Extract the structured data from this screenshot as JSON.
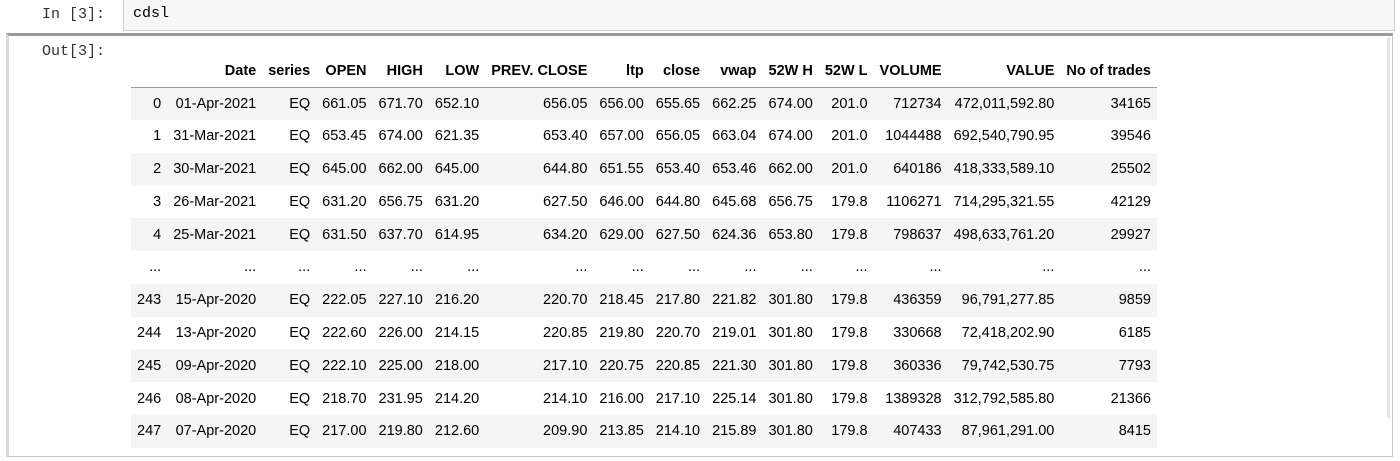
{
  "input_cell": {
    "prompt": "In [3]:",
    "code": "cdsl"
  },
  "output_cell": {
    "prompt": "Out[3]:"
  },
  "table": {
    "columns": [
      "",
      "Date",
      "series",
      "OPEN",
      "HIGH",
      "LOW",
      "PREV. CLOSE",
      "ltp",
      "close",
      "vwap",
      "52W H",
      "52W L",
      "VOLUME",
      "VALUE",
      "No of trades"
    ],
    "rows": [
      [
        "0",
        "01-Apr-2021",
        "EQ",
        "661.05",
        "671.70",
        "652.10",
        "656.05",
        "656.00",
        "655.65",
        "662.25",
        "674.00",
        "201.0",
        "712734",
        "472,011,592.80",
        "34165"
      ],
      [
        "1",
        "31-Mar-2021",
        "EQ",
        "653.45",
        "674.00",
        "621.35",
        "653.40",
        "657.00",
        "656.05",
        "663.04",
        "674.00",
        "201.0",
        "1044488",
        "692,540,790.95",
        "39546"
      ],
      [
        "2",
        "30-Mar-2021",
        "EQ",
        "645.00",
        "662.00",
        "645.00",
        "644.80",
        "651.55",
        "653.40",
        "653.46",
        "662.00",
        "201.0",
        "640186",
        "418,333,589.10",
        "25502"
      ],
      [
        "3",
        "26-Mar-2021",
        "EQ",
        "631.20",
        "656.75",
        "631.20",
        "627.50",
        "646.00",
        "644.80",
        "645.68",
        "656.75",
        "179.8",
        "1106271",
        "714,295,321.55",
        "42129"
      ],
      [
        "4",
        "25-Mar-2021",
        "EQ",
        "631.50",
        "637.70",
        "614.95",
        "634.20",
        "629.00",
        "627.50",
        "624.36",
        "653.80",
        "179.8",
        "798637",
        "498,633,761.20",
        "29927"
      ],
      [
        "...",
        "...",
        "...",
        "...",
        "...",
        "...",
        "...",
        "...",
        "...",
        "...",
        "...",
        "...",
        "...",
        "...",
        "..."
      ],
      [
        "243",
        "15-Apr-2020",
        "EQ",
        "222.05",
        "227.10",
        "216.20",
        "220.70",
        "218.45",
        "217.80",
        "221.82",
        "301.80",
        "179.8",
        "436359",
        "96,791,277.85",
        "9859"
      ],
      [
        "244",
        "13-Apr-2020",
        "EQ",
        "222.60",
        "226.00",
        "214.15",
        "220.85",
        "219.80",
        "220.70",
        "219.01",
        "301.80",
        "179.8",
        "330668",
        "72,418,202.90",
        "6185"
      ],
      [
        "245",
        "09-Apr-2020",
        "EQ",
        "222.10",
        "225.00",
        "218.00",
        "217.10",
        "220.75",
        "220.85",
        "221.30",
        "301.80",
        "179.8",
        "360336",
        "79,742,530.75",
        "7793"
      ],
      [
        "246",
        "08-Apr-2020",
        "EQ",
        "218.70",
        "231.95",
        "214.20",
        "214.10",
        "216.00",
        "217.10",
        "225.14",
        "301.80",
        "179.8",
        "1389328",
        "312,792,585.80",
        "21366"
      ],
      [
        "247",
        "07-Apr-2020",
        "EQ",
        "217.00",
        "219.80",
        "212.60",
        "209.90",
        "213.85",
        "214.10",
        "215.89",
        "301.80",
        "179.8",
        "407433",
        "87,961,291.00",
        "8415"
      ]
    ]
  }
}
